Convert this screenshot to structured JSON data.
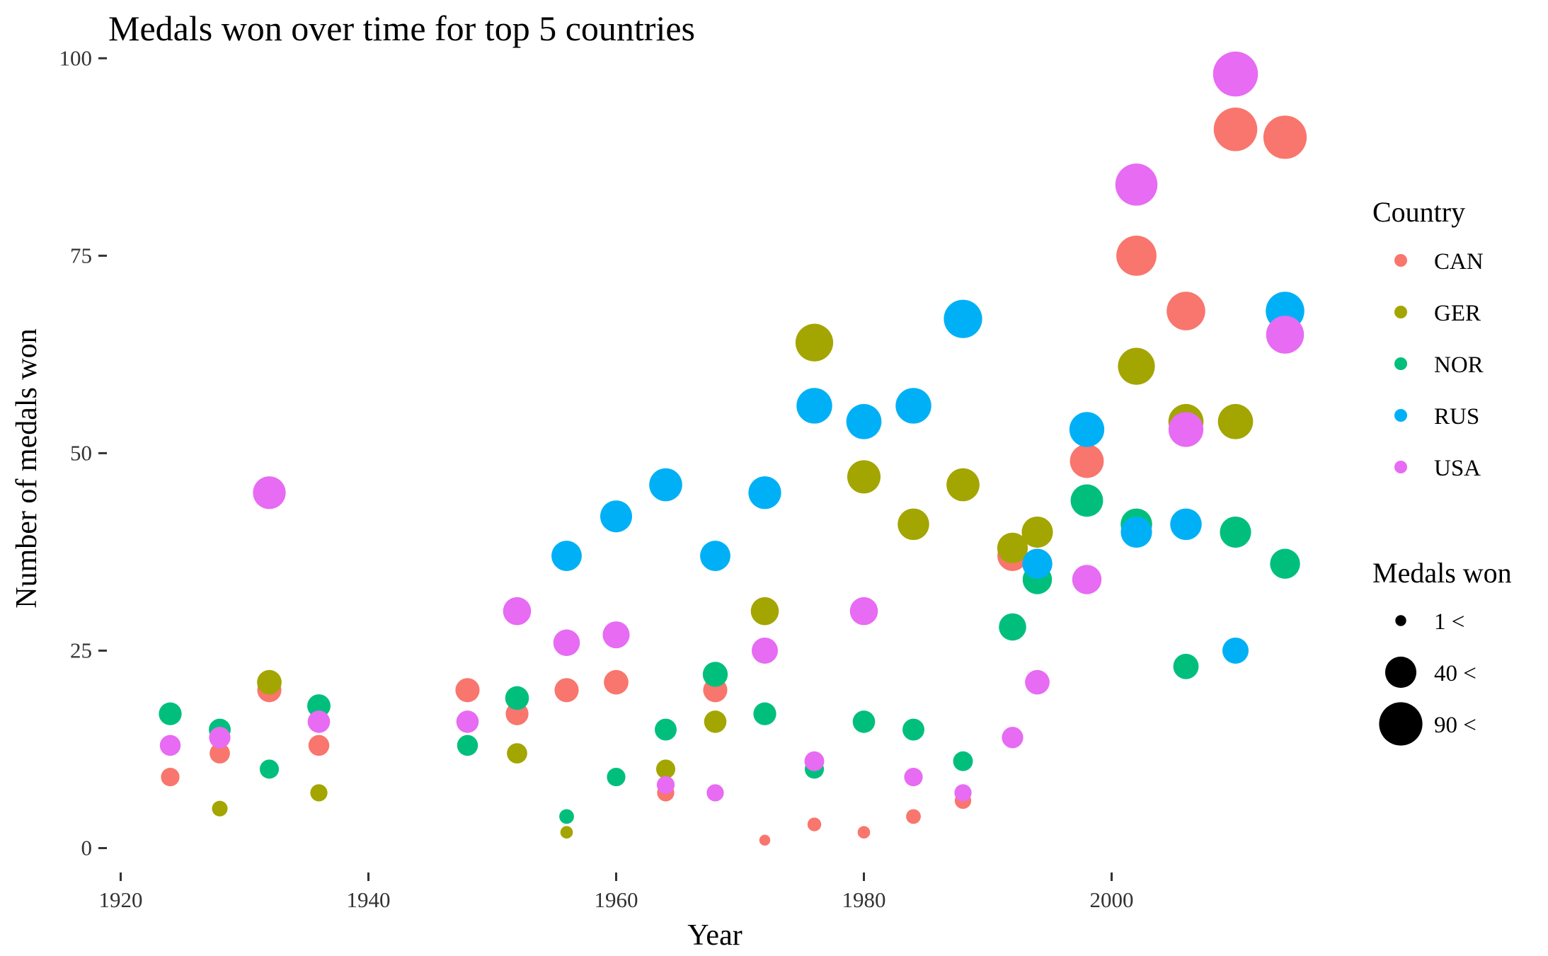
{
  "chart_data": {
    "type": "scatter",
    "title": "Medals won over time for top 5 countries",
    "xlabel": "Year",
    "ylabel": "Number of medals won",
    "xlim": [
      1919,
      2017
    ],
    "ylim": [
      -3,
      102
    ],
    "x_ticks": [
      1920,
      1940,
      1960,
      1980,
      2000
    ],
    "y_ticks": [
      0,
      25,
      50,
      75,
      100
    ],
    "grid": false,
    "legend_position": "right",
    "color_legend": {
      "title": "Country",
      "entries": [
        {
          "label": "CAN",
          "color": "#F8766D"
        },
        {
          "label": "GER",
          "color": "#A3A500"
        },
        {
          "label": "NOR",
          "color": "#00BF7D"
        },
        {
          "label": "RUS",
          "color": "#00B0F6"
        },
        {
          "label": "USA",
          "color": "#E76BF3"
        }
      ]
    },
    "size_legend": {
      "title": "Medals won",
      "entries": [
        {
          "label": "1 <",
          "value": 1
        },
        {
          "label": "40 <",
          "value": 40
        },
        {
          "label": "90 <",
          "value": 90
        }
      ]
    },
    "series": [
      {
        "name": "CAN",
        "color": "#F8766D",
        "points": [
          {
            "x": 1924,
            "y": 9
          },
          {
            "x": 1928,
            "y": 12
          },
          {
            "x": 1932,
            "y": 20
          },
          {
            "x": 1936,
            "y": 13
          },
          {
            "x": 1948,
            "y": 20
          },
          {
            "x": 1952,
            "y": 17
          },
          {
            "x": 1956,
            "y": 20
          },
          {
            "x": 1960,
            "y": 21
          },
          {
            "x": 1964,
            "y": 7
          },
          {
            "x": 1968,
            "y": 20
          },
          {
            "x": 1972,
            "y": 1
          },
          {
            "x": 1976,
            "y": 3
          },
          {
            "x": 1980,
            "y": 2
          },
          {
            "x": 1984,
            "y": 4
          },
          {
            "x": 1988,
            "y": 6
          },
          {
            "x": 1992,
            "y": 37
          },
          {
            "x": 1994,
            "y": 36
          },
          {
            "x": 1998,
            "y": 49
          },
          {
            "x": 2002,
            "y": 75
          },
          {
            "x": 2006,
            "y": 68
          },
          {
            "x": 2010,
            "y": 91
          },
          {
            "x": 2014,
            "y": 90
          }
        ]
      },
      {
        "name": "GER",
        "color": "#A3A500",
        "points": [
          {
            "x": 1928,
            "y": 5
          },
          {
            "x": 1932,
            "y": 21
          },
          {
            "x": 1936,
            "y": 7
          },
          {
            "x": 1952,
            "y": 12
          },
          {
            "x": 1956,
            "y": 2
          },
          {
            "x": 1964,
            "y": 10
          },
          {
            "x": 1968,
            "y": 16
          },
          {
            "x": 1972,
            "y": 30
          },
          {
            "x": 1976,
            "y": 64
          },
          {
            "x": 1980,
            "y": 47
          },
          {
            "x": 1984,
            "y": 41
          },
          {
            "x": 1988,
            "y": 46
          },
          {
            "x": 1992,
            "y": 38
          },
          {
            "x": 1994,
            "y": 40
          },
          {
            "x": 2002,
            "y": 61
          },
          {
            "x": 2006,
            "y": 54
          },
          {
            "x": 2010,
            "y": 54
          }
        ]
      },
      {
        "name": "NOR",
        "color": "#00BF7D",
        "points": [
          {
            "x": 1924,
            "y": 17
          },
          {
            "x": 1928,
            "y": 15
          },
          {
            "x": 1932,
            "y": 10
          },
          {
            "x": 1936,
            "y": 18
          },
          {
            "x": 1948,
            "y": 13
          },
          {
            "x": 1952,
            "y": 19
          },
          {
            "x": 1956,
            "y": 4
          },
          {
            "x": 1960,
            "y": 9
          },
          {
            "x": 1964,
            "y": 15
          },
          {
            "x": 1968,
            "y": 22
          },
          {
            "x": 1972,
            "y": 17
          },
          {
            "x": 1976,
            "y": 10
          },
          {
            "x": 1980,
            "y": 16
          },
          {
            "x": 1984,
            "y": 15
          },
          {
            "x": 1988,
            "y": 11
          },
          {
            "x": 1992,
            "y": 28
          },
          {
            "x": 1994,
            "y": 34
          },
          {
            "x": 1998,
            "y": 44
          },
          {
            "x": 2002,
            "y": 41
          },
          {
            "x": 2006,
            "y": 23
          },
          {
            "x": 2010,
            "y": 40
          },
          {
            "x": 2014,
            "y": 36
          }
        ]
      },
      {
        "name": "RUS",
        "color": "#00B0F6",
        "points": [
          {
            "x": 1956,
            "y": 37
          },
          {
            "x": 1960,
            "y": 42
          },
          {
            "x": 1964,
            "y": 46
          },
          {
            "x": 1968,
            "y": 37
          },
          {
            "x": 1972,
            "y": 45
          },
          {
            "x": 1976,
            "y": 56
          },
          {
            "x": 1980,
            "y": 54
          },
          {
            "x": 1984,
            "y": 56
          },
          {
            "x": 1988,
            "y": 67
          },
          {
            "x": 1994,
            "y": 36
          },
          {
            "x": 1998,
            "y": 53
          },
          {
            "x": 2002,
            "y": 40
          },
          {
            "x": 2006,
            "y": 41
          },
          {
            "x": 2010,
            "y": 25
          },
          {
            "x": 2014,
            "y": 68
          }
        ]
      },
      {
        "name": "USA",
        "color": "#E76BF3",
        "points": [
          {
            "x": 1924,
            "y": 13
          },
          {
            "x": 1928,
            "y": 14
          },
          {
            "x": 1932,
            "y": 45
          },
          {
            "x": 1936,
            "y": 16
          },
          {
            "x": 1948,
            "y": 16
          },
          {
            "x": 1952,
            "y": 30
          },
          {
            "x": 1956,
            "y": 26
          },
          {
            "x": 1960,
            "y": 27
          },
          {
            "x": 1964,
            "y": 8
          },
          {
            "x": 1968,
            "y": 7
          },
          {
            "x": 1972,
            "y": 25
          },
          {
            "x": 1976,
            "y": 11
          },
          {
            "x": 1980,
            "y": 30
          },
          {
            "x": 1984,
            "y": 9
          },
          {
            "x": 1988,
            "y": 7
          },
          {
            "x": 1992,
            "y": 14
          },
          {
            "x": 1994,
            "y": 21
          },
          {
            "x": 1998,
            "y": 34
          },
          {
            "x": 2002,
            "y": 84
          },
          {
            "x": 2006,
            "y": 53
          },
          {
            "x": 2010,
            "y": 98
          },
          {
            "x": 2014,
            "y": 65
          }
        ]
      }
    ]
  }
}
